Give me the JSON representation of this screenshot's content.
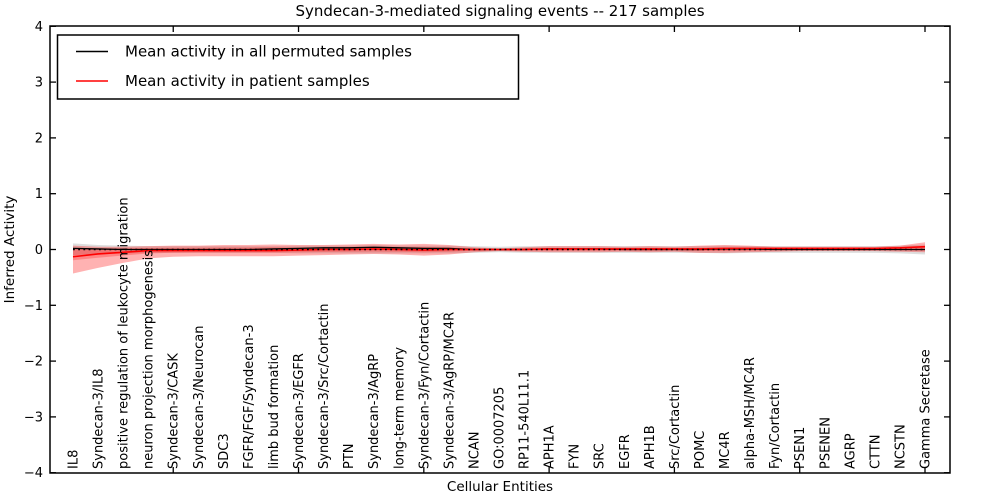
{
  "chart_data": {
    "type": "line",
    "title": "Syndecan-3-mediated signaling events -- 217 samples",
    "xlabel": "Cellular Entities",
    "ylabel": "Inferred Activity",
    "ylim": [
      -4,
      4
    ],
    "grid": false,
    "legend_position": "upper left",
    "yticks": {
      "values": [
        4,
        3,
        2,
        1,
        0,
        -1,
        -2,
        -3,
        -4
      ],
      "labels": [
        "4",
        "3",
        "2",
        "1",
        "0",
        "−1",
        "−2",
        "−3",
        "−4"
      ]
    },
    "xtick_major_indices": [
      4,
      9,
      14,
      19,
      24,
      29,
      34
    ],
    "categories": [
      "IL8",
      "Syndecan-3/IL8",
      "positive regulation of leukocyte migration",
      "neuron projection morphogenesis",
      "Syndecan-3/CASK",
      "Syndecan-3/Neurocan",
      "SDC3",
      "FGFR/FGF/Syndecan-3",
      "limb bud formation",
      "Syndecan-3/EGFR",
      "Syndecan-3/Src/Cortactin",
      "PTN",
      "Syndecan-3/AgRP",
      "long-term memory",
      "Syndecan-3/Fyn/Cortactin",
      "Syndecan-3/AgRP/MC4R",
      "NCAN",
      "GO:0007205",
      "RP11-540L11.1",
      "APH1A",
      "FYN",
      "SRC",
      "EGFR",
      "APH1B",
      "Src/Cortactin",
      "POMC",
      "MC4R",
      "alpha-MSH/MC4R",
      "Fyn/Cortactin",
      "PSEN1",
      "PSENEN",
      "AGRP",
      "CTTN",
      "NCSTN",
      "Gamma Secretase"
    ],
    "series": [
      {
        "name": "Mean activity in all permuted samples",
        "color": "#000000",
        "values": [
          0.02,
          0.01,
          0.0,
          0.0,
          0.0,
          0.0,
          0.0,
          0.0,
          0.01,
          0.02,
          0.03,
          0.03,
          0.04,
          0.03,
          0.02,
          0.02,
          0.0,
          0.0,
          0.0,
          0.01,
          0.01,
          0.01,
          0.0,
          0.0,
          0.0,
          0.0,
          0.01,
          0.01,
          0.0,
          0.0,
          0.0,
          0.0,
          0.0,
          0.0,
          0.0
        ]
      },
      {
        "name": "Mean activity in patient samples",
        "color": "#ff0000",
        "values": [
          -0.13,
          -0.08,
          -0.05,
          -0.02,
          -0.02,
          -0.02,
          -0.02,
          -0.02,
          -0.02,
          -0.01,
          0.0,
          0.0,
          0.01,
          0.0,
          -0.01,
          0.0,
          0.0,
          0.0,
          0.0,
          0.01,
          0.01,
          0.01,
          0.01,
          0.01,
          0.01,
          0.01,
          0.02,
          0.02,
          0.02,
          0.02,
          0.02,
          0.02,
          0.02,
          0.03,
          0.05
        ]
      }
    ],
    "bands": [
      {
        "name": "permuted-samples-std-band",
        "color": "#000000",
        "opacity": 0.13,
        "upper": [
          0.11,
          0.08,
          0.07,
          0.06,
          0.06,
          0.06,
          0.06,
          0.06,
          0.06,
          0.07,
          0.07,
          0.07,
          0.08,
          0.07,
          0.07,
          0.07,
          0.06,
          0.05,
          0.06,
          0.06,
          0.06,
          0.06,
          0.06,
          0.06,
          0.06,
          0.06,
          0.07,
          0.06,
          0.06,
          0.06,
          0.06,
          0.06,
          0.06,
          0.07,
          0.09
        ],
        "lower": [
          -0.1,
          -0.08,
          -0.07,
          -0.06,
          -0.06,
          -0.06,
          -0.06,
          -0.06,
          -0.06,
          -0.07,
          -0.07,
          -0.07,
          -0.07,
          -0.07,
          -0.07,
          -0.07,
          -0.06,
          -0.05,
          -0.06,
          -0.06,
          -0.06,
          -0.06,
          -0.06,
          -0.06,
          -0.06,
          -0.06,
          -0.07,
          -0.06,
          -0.06,
          -0.06,
          -0.06,
          -0.06,
          -0.06,
          -0.07,
          -0.09
        ]
      },
      {
        "name": "patient-samples-std-band",
        "color": "#ff0000",
        "opacity": 0.3,
        "upper": [
          0.07,
          0.05,
          0.05,
          0.06,
          0.07,
          0.07,
          0.08,
          0.08,
          0.09,
          0.08,
          0.08,
          0.09,
          0.1,
          0.09,
          0.1,
          0.08,
          0.04,
          0.02,
          0.04,
          0.06,
          0.06,
          0.06,
          0.05,
          0.06,
          0.05,
          0.07,
          0.08,
          0.07,
          0.05,
          0.05,
          0.05,
          0.05,
          0.05,
          0.07,
          0.13
        ],
        "lower": [
          -0.43,
          -0.33,
          -0.24,
          -0.16,
          -0.13,
          -0.12,
          -0.12,
          -0.12,
          -0.12,
          -0.11,
          -0.1,
          -0.09,
          -0.08,
          -0.09,
          -0.11,
          -0.09,
          -0.05,
          -0.03,
          -0.04,
          -0.05,
          -0.05,
          -0.05,
          -0.04,
          -0.05,
          -0.04,
          -0.06,
          -0.06,
          -0.05,
          -0.04,
          -0.03,
          -0.03,
          -0.03,
          -0.03,
          -0.04,
          -0.05
        ]
      }
    ],
    "zero_reference_line": {
      "style": "dotted",
      "color": "#000000",
      "y": 0
    }
  }
}
